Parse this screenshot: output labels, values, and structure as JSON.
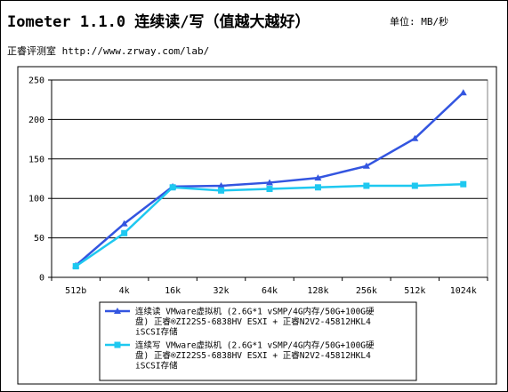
{
  "header": {
    "title": "Iometer 1.1.0 连续读/写（值越大越好）",
    "unit": "单位: MB/秒",
    "source": "正睿评测室 http://www.zrway.com/lab/"
  },
  "chart_data": {
    "type": "line",
    "categories": [
      "512b",
      "4k",
      "16k",
      "32k",
      "64k",
      "128k",
      "256k",
      "512k",
      "1024k"
    ],
    "ylim": [
      0,
      250
    ],
    "yticks": [
      0,
      50,
      100,
      150,
      200,
      250
    ],
    "grid": true,
    "legend_position": "bottom",
    "series": [
      {
        "name": "连续读 VMware虚拟机 (2.6G*1 vSMP/4G内存/50G+100G硬盘) 正睿®ZI22S5-6838HV ESXI + 正睿N2V2-45812HKL4 iSCSI存储",
        "name_lines": [
          "连续读 VMware虚拟机 (2.6G*1 vSMP/4G内存/50G+100G硬",
          "盘) 正睿®ZI22S5-6838HV ESXI + 正睿N2V2-45812HKL4",
          "iSCSI存储"
        ],
        "color": "#3355e0",
        "marker": "triangle",
        "values": [
          15,
          68,
          115,
          116,
          120,
          126,
          141,
          176,
          234
        ]
      },
      {
        "name": "连续写 VMware虚拟机 (2.6G*1 vSMP/4G内存/50G+100G硬盘) 正睿®ZI22S5-6838HV ESXI + 正睿N2V2-45812HKL4 iSCSI存储",
        "name_lines": [
          "连续写 VMware虚拟机 (2.6G*1 vSMP/4G内存/50G+100G硬",
          "盘) 正睿®ZI22S5-6838HV ESXI + 正睿N2V2-45812HKL4",
          "iSCSI存储"
        ],
        "color": "#1ec8f0",
        "marker": "square",
        "values": [
          14,
          56,
          114,
          110,
          112,
          114,
          116,
          116,
          118
        ]
      }
    ]
  }
}
